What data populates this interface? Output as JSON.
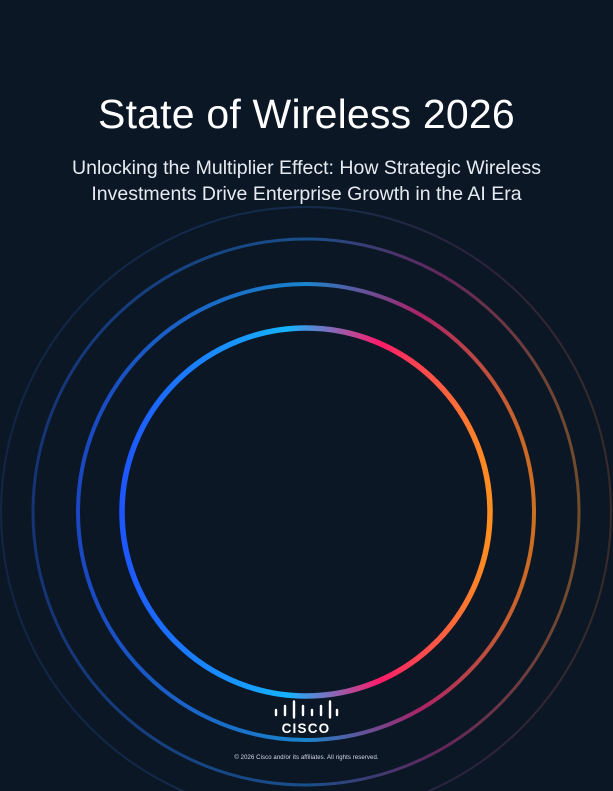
{
  "document": {
    "title": "State of Wireless 2026",
    "subtitle_line1": "Unlocking the Multiplier Effect: How Strategic Wireless",
    "subtitle_line2": "Investments Drive Enterprise Growth in the AI Era",
    "logo_word": "CISCO",
    "copyright": "© 2026 Cisco and/or its affiliates. All rights reserved."
  },
  "colors": {
    "background": "#0c1726",
    "ring_blue": "#1e5cff",
    "ring_cyan": "#18b6ff",
    "ring_pink": "#ff1f6a",
    "ring_orange": "#ff8a1e"
  },
  "icons": {
    "logo": "cisco-logo-icon",
    "rings": "concentric-gradient-rings"
  }
}
